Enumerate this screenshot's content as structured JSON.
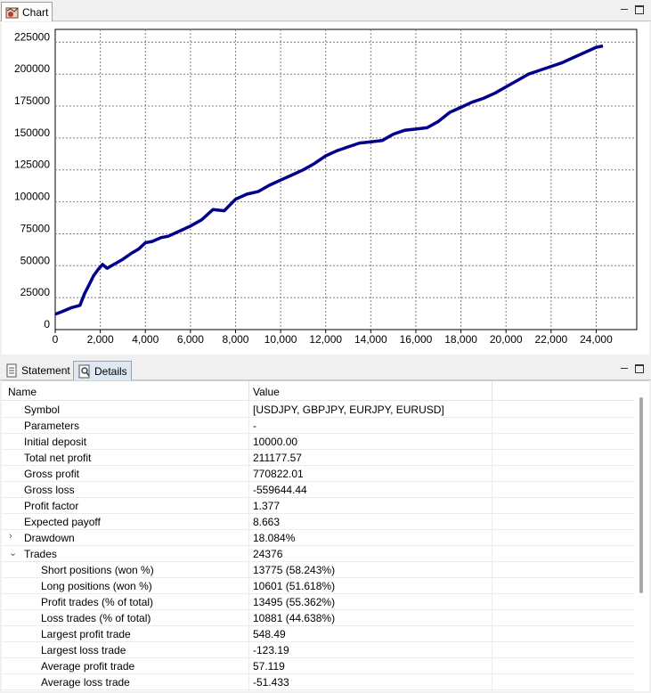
{
  "chart_panel": {
    "tab_label": "Chart"
  },
  "details_panel": {
    "tabs": [
      {
        "label": "Statement"
      },
      {
        "label": "Details"
      }
    ],
    "columns": {
      "name": "Name",
      "value": "Value"
    },
    "rows": [
      {
        "name": "Symbol",
        "value": "[USDJPY, GBPJPY, EURJPY, EURUSD]",
        "level": 0
      },
      {
        "name": "Parameters",
        "value": "-",
        "level": 0
      },
      {
        "name": "Initial deposit",
        "value": "10000.00",
        "level": 0
      },
      {
        "name": "Total net profit",
        "value": "211177.57",
        "level": 0
      },
      {
        "name": "Gross profit",
        "value": "770822.01",
        "level": 0
      },
      {
        "name": "Gross loss",
        "value": "-559644.44",
        "level": 0
      },
      {
        "name": "Profit factor",
        "value": "1.377",
        "level": 0
      },
      {
        "name": "Expected payoff",
        "value": "8.663",
        "level": 0
      },
      {
        "name": "Drawdown",
        "value": "18.084%",
        "level": 0,
        "expander": "›"
      },
      {
        "name": "Trades",
        "value": "24376",
        "level": 0,
        "expander": "⌄"
      },
      {
        "name": "Short positions (won %)",
        "value": "13775 (58.243%)",
        "level": 1
      },
      {
        "name": "Long positions (won %)",
        "value": "10601 (51.618%)",
        "level": 1
      },
      {
        "name": "Profit trades (% of total)",
        "value": "13495 (55.362%)",
        "level": 1
      },
      {
        "name": "Loss trades (% of total)",
        "value": "10881 (44.638%)",
        "level": 1
      },
      {
        "name": "Largest profit trade",
        "value": "548.49",
        "level": 1
      },
      {
        "name": "Largest loss trade",
        "value": "-123.19",
        "level": 1
      },
      {
        "name": "Average profit trade",
        "value": "57.119",
        "level": 1
      },
      {
        "name": "Average loss trade",
        "value": "-51.433",
        "level": 1
      }
    ]
  },
  "colors": {
    "line": "#00008b",
    "grid": "#808080"
  },
  "chart_data": {
    "type": "line",
    "title": "",
    "xlabel": "",
    "ylabel": "",
    "xlim": [
      0,
      25800
    ],
    "ylim": [
      0,
      235000
    ],
    "x_ticks": [
      "0",
      "2,000",
      "4,000",
      "6,000",
      "8,000",
      "10,000",
      "12,000",
      "14,000",
      "16,000",
      "18,000",
      "20,000",
      "22,000",
      "24,000"
    ],
    "x_tick_values": [
      0,
      2000,
      4000,
      6000,
      8000,
      10000,
      12000,
      14000,
      16000,
      18000,
      20000,
      22000,
      24000
    ],
    "y_ticks": [
      "0",
      "25000",
      "50000",
      "75000",
      "100000",
      "125000",
      "150000",
      "175000",
      "200000",
      "225000"
    ],
    "y_tick_values": [
      0,
      25000,
      50000,
      75000,
      100000,
      125000,
      150000,
      175000,
      200000,
      225000
    ],
    "grid": true,
    "series": [
      {
        "x": [
          0,
          300,
          700,
          1100,
          1300,
          1500,
          1700,
          1900,
          2100,
          2300,
          2600,
          3000,
          3400,
          3700,
          4000,
          4300,
          4700,
          5000,
          5500,
          6000,
          6500,
          7000,
          7500,
          8000,
          8500,
          9000,
          9500,
          10000,
          10500,
          11000,
          11500,
          12000,
          12500,
          13000,
          13500,
          14000,
          14500,
          15000,
          15500,
          16000,
          16500,
          17000,
          17500,
          18000,
          18500,
          19000,
          19500,
          20000,
          20500,
          21000,
          21500,
          22000,
          22500,
          23000,
          23500,
          24000,
          24300
        ],
        "y": [
          12000,
          14000,
          17000,
          19000,
          28000,
          35000,
          42000,
          47000,
          51000,
          48000,
          51000,
          55000,
          60000,
          63000,
          68000,
          69000,
          72000,
          73000,
          77000,
          81000,
          86000,
          94000,
          93000,
          102000,
          106000,
          108000,
          113000,
          117000,
          121000,
          125000,
          130000,
          136000,
          140000,
          143000,
          146000,
          147000,
          148000,
          153000,
          156000,
          157000,
          158000,
          163000,
          170000,
          174000,
          178000,
          181000,
          185000,
          190000,
          195000,
          200000,
          203000,
          206000,
          209000,
          213000,
          217000,
          221000,
          222000
        ]
      }
    ]
  }
}
